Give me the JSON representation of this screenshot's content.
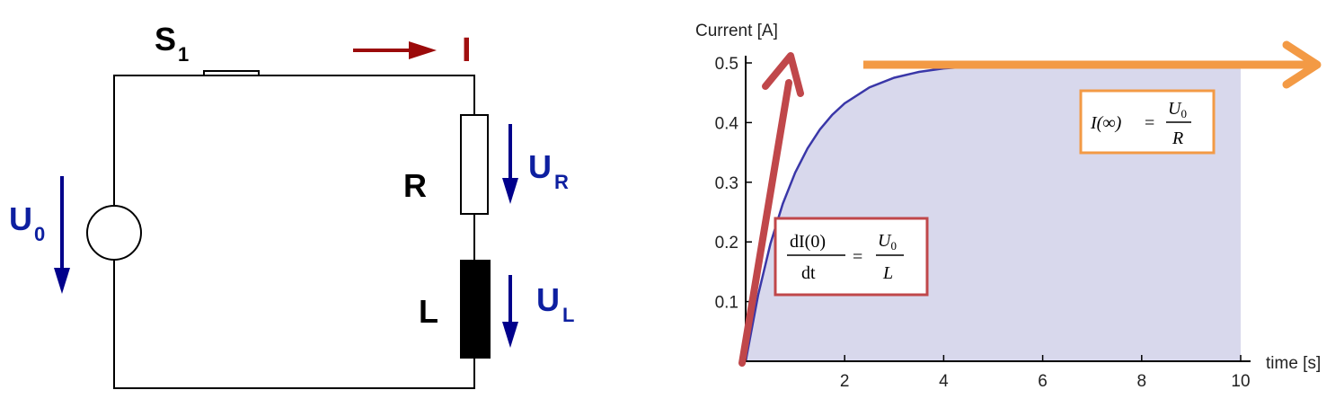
{
  "circuit": {
    "switch_label": "S",
    "switch_sub": "1",
    "current_label": "I",
    "source_label": "U",
    "source_sub": "0",
    "resistor_label": "R",
    "resistor_voltage_label": "U",
    "resistor_voltage_sub": "R",
    "inductor_label": "L",
    "inductor_voltage_label": "U",
    "inductor_voltage_sub": "L",
    "colors": {
      "wire": "#000000",
      "voltage_arrow": "#00008b",
      "current_arrow": "#9b0a0a",
      "label_blue": "#0d1fa0",
      "label_red": "#a01010"
    }
  },
  "chart_data": {
    "type": "line",
    "xlabel": "time [s]",
    "ylabel": "Current [A]",
    "xlim": [
      0,
      10
    ],
    "ylim": [
      0,
      0.52
    ],
    "x_ticks": [
      "2",
      "4",
      "6",
      "8",
      "10"
    ],
    "y_ticks": [
      "0.1",
      "0.2",
      "0.3",
      "0.4",
      "0.5"
    ],
    "series": [
      {
        "x": [
          0,
          0.25,
          0.5,
          0.75,
          1,
          1.25,
          1.5,
          1.75,
          2,
          2.5,
          3,
          3.5,
          4,
          5,
          6,
          7,
          8,
          9,
          10
        ],
        "y": [
          0,
          0.1106,
          0.1967,
          0.2638,
          0.3161,
          0.3568,
          0.3884,
          0.4131,
          0.4323,
          0.459,
          0.4751,
          0.485,
          0.4908,
          0.4966,
          0.4988,
          0.4996,
          0.4998,
          0.4999,
          0.5
        ]
      }
    ],
    "annotations": {
      "slope_box": {
        "lhs_num": "dI(0)",
        "lhs_den": "dt",
        "equals": "=",
        "rhs_num": "U",
        "rhs_num_sub": "0",
        "rhs_den": "L",
        "color": "#c0474a"
      },
      "steady_box": {
        "lhs": "I(∞)",
        "equals": "=",
        "rhs_num": "U",
        "rhs_num_sub": "0",
        "rhs_den": "R",
        "color": "#f39a45"
      }
    },
    "colors": {
      "curve": "#3a37a8",
      "fill": "#d8d8ec",
      "slope_arrow": "#c0474a",
      "steady_arrow": "#f39a45"
    },
    "grid": false
  }
}
